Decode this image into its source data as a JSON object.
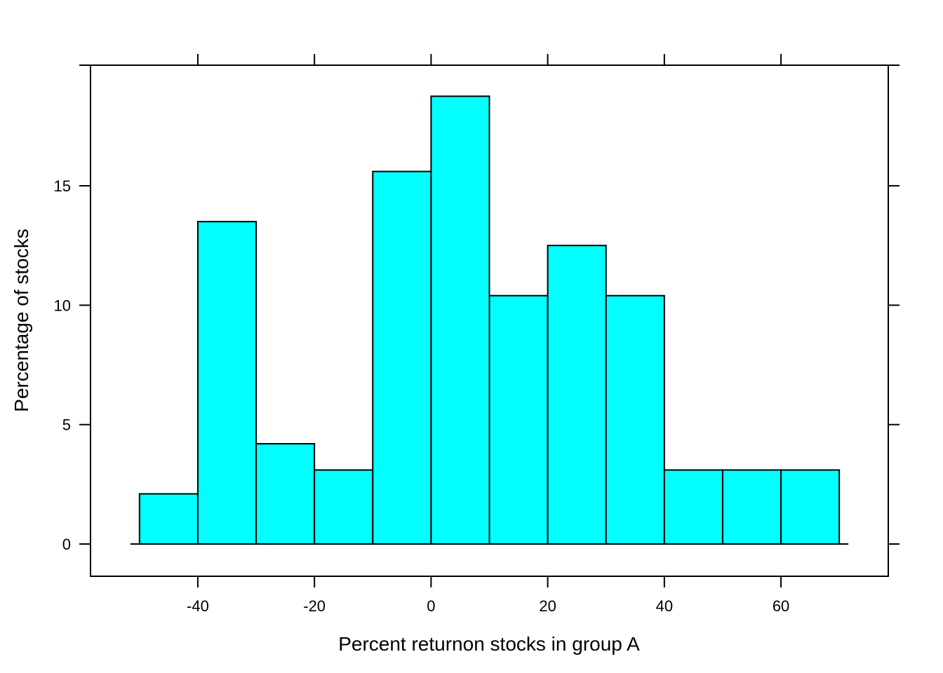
{
  "chart_data": {
    "type": "bar",
    "subtype": "histogram",
    "title": "",
    "xlabel": "Percent returnon stocks in group A",
    "ylabel": "Percentage of stocks",
    "bins": [
      {
        "x0": -50,
        "x1": -40,
        "value": 2.1
      },
      {
        "x0": -40,
        "x1": -30,
        "value": 13.5
      },
      {
        "x0": -30,
        "x1": -20,
        "value": 4.2
      },
      {
        "x0": -20,
        "x1": -10,
        "value": 3.1
      },
      {
        "x0": -10,
        "x1": 0,
        "value": 15.6
      },
      {
        "x0": 0,
        "x1": 10,
        "value": 18.75
      },
      {
        "x0": 10,
        "x1": 20,
        "value": 10.4
      },
      {
        "x0": 20,
        "x1": 30,
        "value": 12.5
      },
      {
        "x0": 30,
        "x1": 40,
        "value": 10.4
      },
      {
        "x0": 40,
        "x1": 50,
        "value": 3.1
      },
      {
        "x0": 50,
        "x1": 60,
        "value": 3.1
      },
      {
        "x0": 60,
        "x1": 70,
        "value": 3.1
      }
    ],
    "xlim": [
      -58.4,
      78.4
    ],
    "ylim": [
      -1.35,
      20.05
    ],
    "xticks": [
      -40,
      -20,
      0,
      20,
      40,
      60
    ],
    "xtick_labels": [
      "-40",
      "-20",
      "0",
      "20",
      "40",
      "60"
    ],
    "yticks": [
      0,
      5,
      10,
      15
    ],
    "ytick_labels": [
      "0",
      "5",
      "10",
      "15"
    ],
    "bar_color": "#00FFFF",
    "edge_color": "#000000",
    "grid": false,
    "legend": "none"
  }
}
